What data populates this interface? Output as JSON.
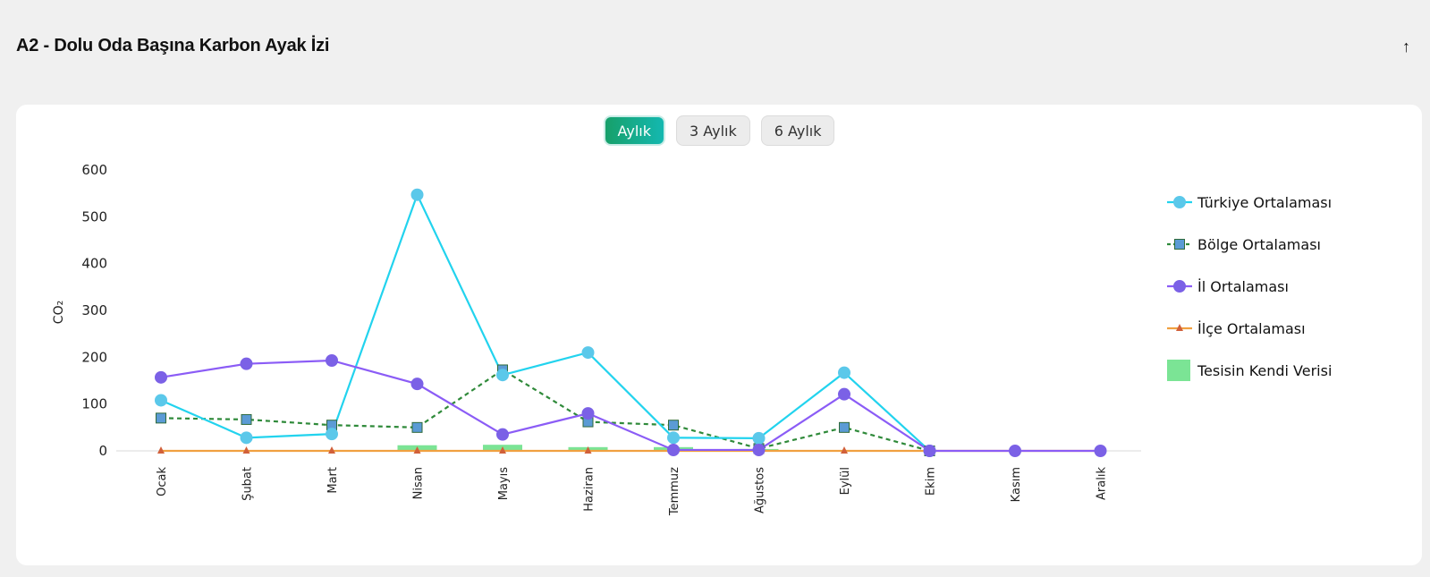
{
  "header": {
    "title": "A2 - Dolu Oda Başına Karbon Ayak İzi",
    "collapse_icon": "↑"
  },
  "tabs": [
    {
      "label": "Aylık",
      "active": true
    },
    {
      "label": "3 Aylık",
      "active": false
    },
    {
      "label": "6 Aylık",
      "active": false
    }
  ],
  "chart_data": {
    "type": "line",
    "title": "",
    "xlabel": "",
    "ylabel": "CO₂",
    "ylim": [
      0,
      600
    ],
    "yticks": [
      0,
      100,
      200,
      300,
      400,
      500,
      600
    ],
    "categories": [
      "Ocak",
      "Şubat",
      "Mart",
      "Nisan",
      "Mayıs",
      "Haziran",
      "Temmuz",
      "Ağustos",
      "Eylül",
      "Ekim",
      "Kasım",
      "Aralık"
    ],
    "legend_position": "right",
    "grid": false,
    "series": [
      {
        "name": "Türkiye Ortalaması",
        "type": "line",
        "marker": "circle",
        "color": "#22d3ee",
        "marker_color": "#5bc8ea",
        "values": [
          108,
          28,
          36,
          547,
          162,
          210,
          28,
          27,
          167,
          0,
          null,
          null
        ]
      },
      {
        "name": "Bölge Ortalaması",
        "type": "line-dashed",
        "marker": "square",
        "color": "#2f8a3a",
        "marker_color": "#5b9bd5",
        "values": [
          70,
          67,
          55,
          50,
          173,
          62,
          55,
          5,
          50,
          0,
          null,
          null
        ]
      },
      {
        "name": "İl Ortalaması",
        "type": "line",
        "marker": "circle",
        "color": "#8b5cf6",
        "marker_color": "#7b61e6",
        "values": [
          157,
          186,
          193,
          143,
          35,
          80,
          2,
          2,
          121,
          0,
          0,
          0
        ]
      },
      {
        "name": "İlçe Ortalaması",
        "type": "line",
        "marker": "triangle",
        "color": "#f0a040",
        "marker_color": "#d1603a",
        "values": [
          0,
          0,
          0,
          0,
          0,
          0,
          0,
          0,
          0,
          0,
          0,
          0
        ]
      },
      {
        "name": "Tesisin Kendi Verisi",
        "type": "bar",
        "color": "#7be495",
        "values": [
          0,
          0,
          0,
          12,
          13,
          8,
          8,
          4,
          0,
          0,
          0,
          0
        ]
      }
    ]
  }
}
